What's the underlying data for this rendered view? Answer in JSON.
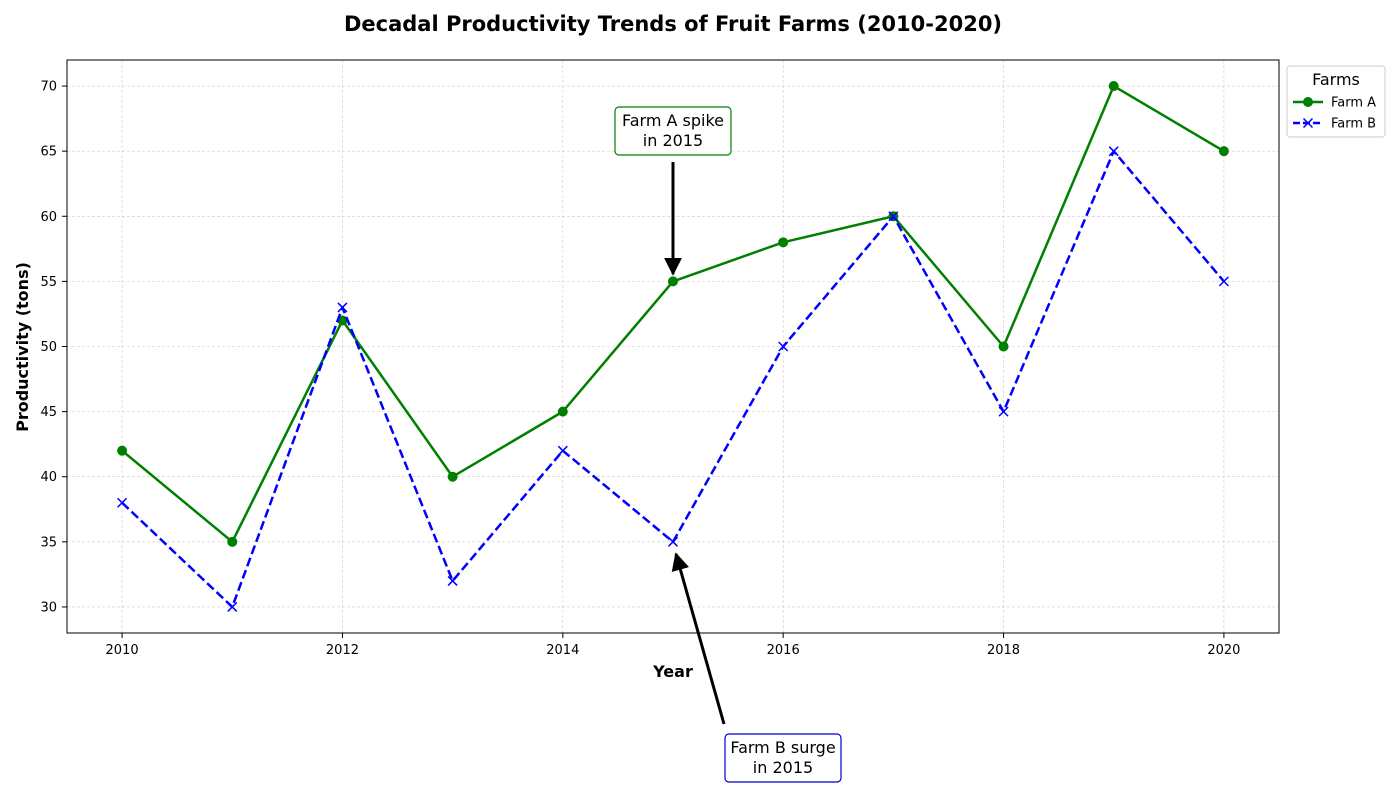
{
  "chart_data": {
    "type": "line",
    "title": "Decadal Productivity Trends of Fruit Farms (2010-2020)",
    "xlabel": "Year",
    "ylabel": "Productivity (tons)",
    "x": [
      2010,
      2011,
      2012,
      2013,
      2014,
      2015,
      2016,
      2017,
      2018,
      2019,
      2020
    ],
    "xlim": [
      2009.5,
      2020.5
    ],
    "ylim": [
      28,
      72
    ],
    "x_ticks": [
      2010,
      2012,
      2014,
      2016,
      2018,
      2020
    ],
    "y_ticks": [
      30,
      35,
      40,
      45,
      50,
      55,
      60,
      65,
      70
    ],
    "grid": true,
    "legend": {
      "title": "Farms",
      "placement": "outside top-right"
    },
    "series": [
      {
        "name": "Farm A",
        "color": "#008000",
        "line_style": "solid",
        "marker": "circle",
        "values": [
          42,
          35,
          52,
          40,
          45,
          55,
          58,
          60,
          50,
          70,
          65
        ]
      },
      {
        "name": "Farm B",
        "color": "#0000ff",
        "line_style": "dashed",
        "marker": "x",
        "values": [
          38,
          30,
          53,
          32,
          42,
          35,
          50,
          60,
          45,
          65,
          55
        ]
      }
    ],
    "annotations": [
      {
        "lines": [
          "Farm A spike",
          "in 2015"
        ],
        "x": 2015,
        "y": 55,
        "border_color": "#008000"
      },
      {
        "lines": [
          "Farm B surge",
          "in 2015"
        ],
        "x": 2015,
        "y": 35,
        "border_color": "#0000cc"
      }
    ]
  }
}
